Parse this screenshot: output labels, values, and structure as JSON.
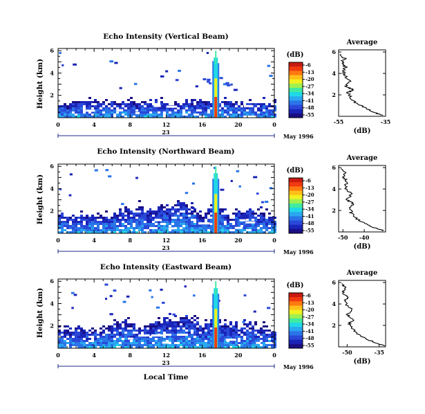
{
  "figure": {
    "x_axis_title": "Local Time",
    "date_label": "May 1996",
    "day_label": "23"
  },
  "colorbar": {
    "unit": "(dB)",
    "ticks": [
      "-6",
      "-13",
      "-20",
      "-27",
      "-34",
      "-41",
      "-48",
      "-55"
    ],
    "colors": [
      "#c81a10",
      "#f03a10",
      "#ff7a10",
      "#ffbf18",
      "#f0f020",
      "#9ef050",
      "#40eaa0",
      "#20d8e6",
      "#2aa8ef",
      "#2a74e8",
      "#2a48d8",
      "#1a24b8",
      "#1a0e84"
    ]
  },
  "chart_data": [
    {
      "type": "heatmap",
      "title": "Echo Intensity (Vertical Beam)",
      "ylabel": "Height (km)",
      "xlabel": "Local Time",
      "x_ticks": [
        "0",
        "4",
        "8",
        "12",
        "16",
        "20",
        "0"
      ],
      "y_ticks": [
        "2",
        "4",
        "6"
      ],
      "xlim": [
        0,
        24
      ],
      "ylim": [
        0,
        6.2
      ],
      "units": "dB",
      "color_range": [
        -55,
        -6
      ],
      "boundary_layer_top_km": [
        1.4,
        1.4,
        1.5,
        1.5,
        1.4,
        1.5,
        1.5,
        1.5,
        1.4,
        1.5,
        1.5,
        1.5,
        1.4,
        1.5,
        1.5,
        1.5,
        1.4,
        1.5,
        1.5,
        1.5,
        1.5,
        1.4,
        1.5,
        1.5,
        1.5
      ],
      "convective_event": {
        "time_h": 17.5,
        "top_km": 6.0
      },
      "average_profile": {
        "title": "Average",
        "xlabel": "(dB)",
        "x_ticks": [
          "-55",
          "-35"
        ],
        "xlim": [
          -55,
          -35
        ],
        "y_ticks": [
          "2",
          "4",
          "6"
        ],
        "ylim": [
          0,
          6.2
        ],
        "x": [
          -36.5,
          -40,
          -44,
          -48,
          -50,
          -51,
          -49,
          -52,
          -50,
          -52,
          -53,
          -52,
          -53.5,
          -52.5,
          -54
        ],
        "y": [
          0.1,
          0.4,
          0.8,
          1.3,
          1.8,
          2.2,
          2.5,
          2.8,
          3.2,
          3.7,
          4.2,
          4.6,
          5.0,
          5.4,
          5.8
        ]
      }
    },
    {
      "type": "heatmap",
      "title": "Echo Intensity (Northward Beam)",
      "ylabel": "Height (km)",
      "xlabel": "Local Time",
      "x_ticks": [
        "0",
        "4",
        "8",
        "12",
        "16",
        "20",
        "0"
      ],
      "y_ticks": [
        "2",
        "4",
        "6"
      ],
      "xlim": [
        0,
        24
      ],
      "ylim": [
        0,
        6.2
      ],
      "units": "dB",
      "color_range": [
        -55,
        -6
      ],
      "boundary_layer_top_km": [
        1.9,
        1.7,
        1.6,
        1.7,
        1.5,
        1.7,
        1.9,
        2.3,
        2.0,
        2.6,
        1.8,
        2.4,
        2.3,
        2.8,
        2.8,
        2.1,
        1.6,
        2.9,
        2.3,
        1.6,
        2.1,
        2.2,
        2.1,
        1.8,
        1.7
      ],
      "convective_event": {
        "time_h": 17.5,
        "top_km": 6.0
      },
      "average_profile": {
        "title": "Average",
        "xlabel": "(dB)",
        "x_ticks": [
          "-50",
          "-40"
        ],
        "xlim": [
          -52,
          -30
        ],
        "y_ticks": [
          "2",
          "4",
          "6"
        ],
        "ylim": [
          0,
          6.2
        ],
        "x": [
          -31,
          -35,
          -40,
          -44,
          -46,
          -47,
          -45,
          -48,
          -46,
          -48,
          -49,
          -48,
          -50,
          -49,
          -51
        ],
        "y": [
          0.1,
          0.4,
          0.8,
          1.3,
          1.8,
          2.2,
          2.6,
          3.0,
          3.5,
          3.9,
          4.3,
          4.7,
          5.1,
          5.5,
          5.9
        ]
      }
    },
    {
      "type": "heatmap",
      "title": "Echo Intensity (Eastward Beam)",
      "ylabel": "Height (km)",
      "xlabel": "Local Time",
      "x_ticks": [
        "0",
        "4",
        "8",
        "12",
        "16",
        "20",
        "0"
      ],
      "y_ticks": [
        "2",
        "4",
        "6"
      ],
      "xlim": [
        0,
        24
      ],
      "ylim": [
        0,
        6.2
      ],
      "units": "dB",
      "color_range": [
        -55,
        -6
      ],
      "boundary_layer_top_km": [
        1.8,
        1.7,
        1.9,
        1.8,
        1.6,
        1.8,
        2.2,
        2.3,
        2.4,
        2.0,
        2.2,
        2.6,
        2.7,
        2.6,
        2.9,
        2.7,
        2.1,
        2.8,
        2.5,
        2.3,
        2.1,
        2.3,
        2.0,
        1.9,
        1.6
      ],
      "convective_event": {
        "time_h": 17.5,
        "top_km": 6.0
      },
      "average_profile": {
        "title": "Average",
        "xlabel": "(dB)",
        "x_ticks": [
          "-50",
          "-35"
        ],
        "xlim": [
          -54,
          -32
        ],
        "y_ticks": [
          "2",
          "4",
          "6"
        ],
        "ylim": [
          0,
          6.2
        ],
        "x": [
          -33,
          -37,
          -42,
          -46,
          -48,
          -49,
          -47,
          -50,
          -48,
          -50,
          -51,
          -50,
          -52,
          -51,
          -52.5
        ],
        "y": [
          0.1,
          0.4,
          0.8,
          1.3,
          1.8,
          2.2,
          2.6,
          3.0,
          3.5,
          3.9,
          4.3,
          4.7,
          5.1,
          5.5,
          5.9
        ]
      }
    }
  ]
}
